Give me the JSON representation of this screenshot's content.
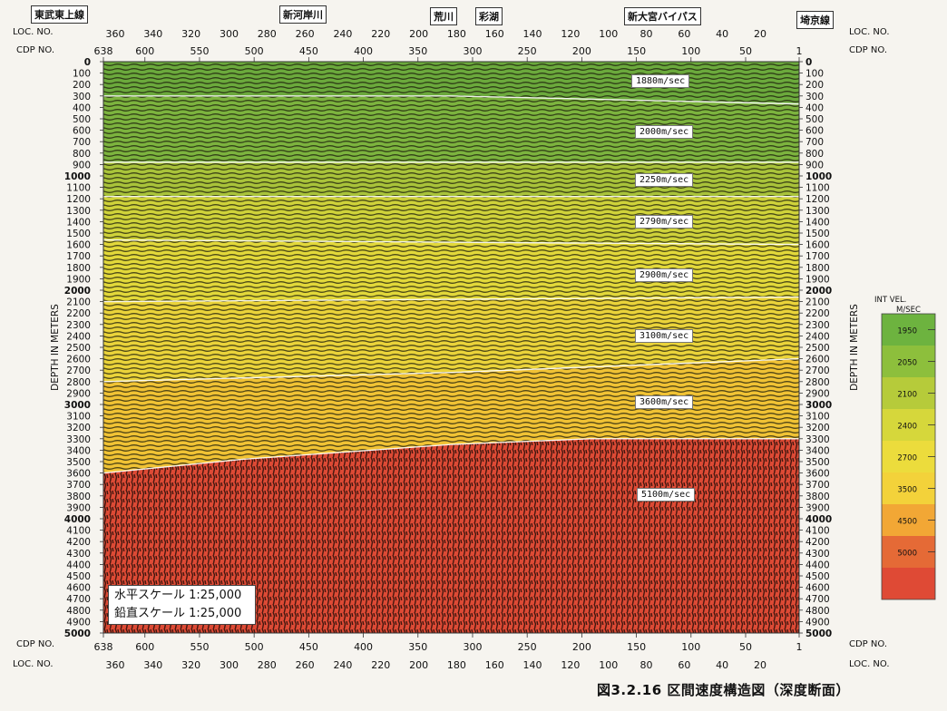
{
  "places": [
    "東武東上線",
    "新河岸川",
    "荒川",
    "彩湖",
    "新大宮バイパス",
    "埼京線"
  ],
  "row_labels": {
    "loc": "LOC. NO.",
    "cdp": "CDP NO."
  },
  "loc_ticks": [
    "360",
    "340",
    "320",
    "300",
    "280",
    "260",
    "240",
    "220",
    "200",
    "180",
    "160",
    "140",
    "120",
    "100",
    "80",
    "60",
    "40",
    "20"
  ],
  "cdp_ticks": [
    "638",
    "600",
    "550",
    "500",
    "450",
    "400",
    "350",
    "300",
    "250",
    "200",
    "150",
    "100",
    "50",
    "1"
  ],
  "depth_axis_label": "DEPTH IN METERS",
  "depth_ticks": [
    "0",
    "100",
    "200",
    "300",
    "400",
    "500",
    "600",
    "700",
    "800",
    "900",
    "1000",
    "1100",
    "1200",
    "1300",
    "1400",
    "1500",
    "1600",
    "1700",
    "1800",
    "1900",
    "2000",
    "2100",
    "2200",
    "2300",
    "2400",
    "2500",
    "2600",
    "2700",
    "2800",
    "2900",
    "3000",
    "3100",
    "3200",
    "3300",
    "3400",
    "3500",
    "3600",
    "3700",
    "3800",
    "3900",
    "4000",
    "4100",
    "4200",
    "4300",
    "4400",
    "4500",
    "4600",
    "4700",
    "4800",
    "4900",
    "5000"
  ],
  "velocity_labels": [
    "1880m/sec",
    "2000m/sec",
    "2250m/sec",
    "2790m/sec",
    "2900m/sec",
    "3100m/sec",
    "3600m/sec",
    "5100m/sec"
  ],
  "velocity_layers": [
    {
      "label_index": 0,
      "color": "#6ba93c"
    },
    {
      "label_index": 1,
      "color": "#7cb33e"
    },
    {
      "label_index": 2,
      "color": "#a9c33a"
    },
    {
      "label_index": 3,
      "color": "#cfd23a"
    },
    {
      "label_index": 4,
      "color": "#e2d83a"
    },
    {
      "label_index": 5,
      "color": "#ead33a"
    },
    {
      "label_index": 6,
      "color": "#f0c234"
    },
    {
      "label_index": 7,
      "color": "#dd4a35"
    }
  ],
  "legend": {
    "title_line1": "INT VEL.",
    "title_line2": "M/SEC",
    "values": [
      "1950",
      "2050",
      "2100",
      "2400",
      "2700",
      "3500",
      "4500",
      "5000"
    ],
    "colors": [
      "#6db33f",
      "#8dbf3c",
      "#b6cb3a",
      "#d6d73b",
      "#ecdc3c",
      "#f3d23a",
      "#f2a735",
      "#e56a36",
      "#df4a35"
    ]
  },
  "scale": {
    "horizontal": "水平スケール  1:25,000",
    "vertical": "鉛直スケール  1:25,000"
  },
  "caption": "図3.2.16 区間速度構造図（深度断面）"
}
